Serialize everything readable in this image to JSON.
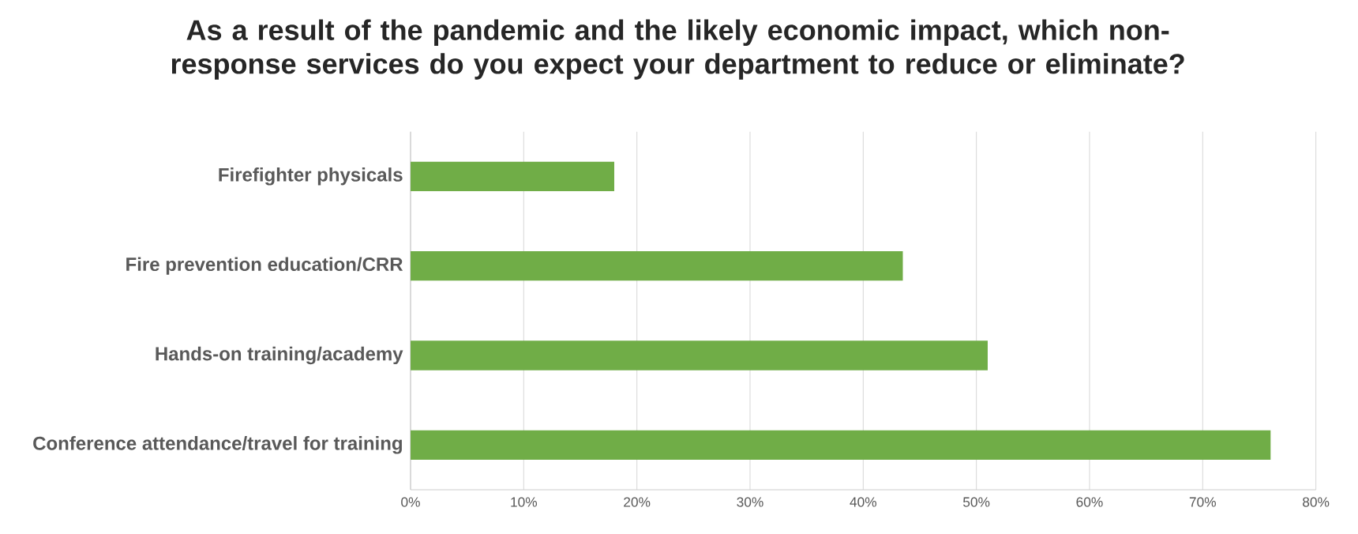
{
  "chart_data": {
    "type": "bar",
    "orientation": "horizontal",
    "title": "As a result of the pandemic and the likely economic impact, which non-response services do you expect your department to reduce or eliminate?",
    "categories": [
      "Firefighter physicals",
      "Fire prevention education/CRR",
      "Hands-on training/academy",
      "Conference attendance/travel for training"
    ],
    "values": [
      18,
      43.5,
      51,
      76
    ],
    "color": "#70ad47",
    "xlim": [
      0,
      80
    ],
    "xticks": [
      {
        "value": 0,
        "label": "0%"
      },
      {
        "value": 10,
        "label": "10%"
      },
      {
        "value": 20,
        "label": "20%"
      },
      {
        "value": 30,
        "label": "30%"
      },
      {
        "value": 40,
        "label": "40%"
      },
      {
        "value": 50,
        "label": "50%"
      },
      {
        "value": 60,
        "label": "60%"
      },
      {
        "value": 70,
        "label": "70%"
      },
      {
        "value": 80,
        "label": "80%"
      }
    ],
    "grid": "x"
  }
}
